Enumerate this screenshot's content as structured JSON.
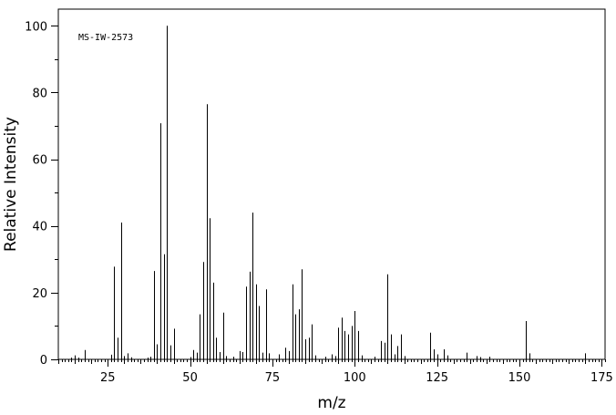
{
  "chart_data": {
    "type": "bar",
    "title": "",
    "annotation": "MS-IW-2573",
    "xlabel": "m/z",
    "ylabel": "Relative Intensity",
    "xlim": [
      10,
      176
    ],
    "ylim": [
      0,
      105
    ],
    "xticks": [
      25,
      50,
      75,
      100,
      125,
      150,
      175
    ],
    "yticks": [
      0,
      20,
      40,
      60,
      80,
      100
    ],
    "grid": false,
    "peaks": [
      {
        "x": 14,
        "y": 0.5
      },
      {
        "x": 15,
        "y": 1.2
      },
      {
        "x": 16,
        "y": 0.5
      },
      {
        "x": 18,
        "y": 2.8
      },
      {
        "x": 26,
        "y": 1.4
      },
      {
        "x": 27,
        "y": 27.8
      },
      {
        "x": 28,
        "y": 6.5
      },
      {
        "x": 29,
        "y": 41.0
      },
      {
        "x": 30,
        "y": 1.0
      },
      {
        "x": 31,
        "y": 1.8
      },
      {
        "x": 32,
        "y": 0.6
      },
      {
        "x": 37,
        "y": 0.5
      },
      {
        "x": 38,
        "y": 0.8
      },
      {
        "x": 39,
        "y": 26.5
      },
      {
        "x": 40,
        "y": 4.5
      },
      {
        "x": 41,
        "y": 70.8
      },
      {
        "x": 42,
        "y": 31.5
      },
      {
        "x": 43,
        "y": 100.0
      },
      {
        "x": 44,
        "y": 4.2
      },
      {
        "x": 45,
        "y": 9.2
      },
      {
        "x": 50,
        "y": 0.7
      },
      {
        "x": 51,
        "y": 2.8
      },
      {
        "x": 52,
        "y": 2.0
      },
      {
        "x": 53,
        "y": 13.5
      },
      {
        "x": 54,
        "y": 29.2
      },
      {
        "x": 55,
        "y": 76.5
      },
      {
        "x": 56,
        "y": 42.3
      },
      {
        "x": 57,
        "y": 23.0
      },
      {
        "x": 58,
        "y": 6.5
      },
      {
        "x": 59,
        "y": 2.2
      },
      {
        "x": 60,
        "y": 14.0
      },
      {
        "x": 61,
        "y": 1.0
      },
      {
        "x": 63,
        "y": 0.8
      },
      {
        "x": 65,
        "y": 2.5
      },
      {
        "x": 66,
        "y": 2.2
      },
      {
        "x": 67,
        "y": 21.8
      },
      {
        "x": 68,
        "y": 26.3
      },
      {
        "x": 69,
        "y": 44.0
      },
      {
        "x": 70,
        "y": 22.5
      },
      {
        "x": 71,
        "y": 16.0
      },
      {
        "x": 72,
        "y": 2.0
      },
      {
        "x": 73,
        "y": 21.0
      },
      {
        "x": 74,
        "y": 1.8
      },
      {
        "x": 77,
        "y": 1.5
      },
      {
        "x": 79,
        "y": 3.5
      },
      {
        "x": 80,
        "y": 2.5
      },
      {
        "x": 81,
        "y": 22.5
      },
      {
        "x": 82,
        "y": 13.5
      },
      {
        "x": 83,
        "y": 15.0
      },
      {
        "x": 84,
        "y": 27.0
      },
      {
        "x": 85,
        "y": 6.0
      },
      {
        "x": 86,
        "y": 6.5
      },
      {
        "x": 87,
        "y": 10.5
      },
      {
        "x": 88,
        "y": 1.2
      },
      {
        "x": 91,
        "y": 0.8
      },
      {
        "x": 93,
        "y": 1.5
      },
      {
        "x": 94,
        "y": 1.0
      },
      {
        "x": 95,
        "y": 9.5
      },
      {
        "x": 96,
        "y": 12.5
      },
      {
        "x": 97,
        "y": 8.5
      },
      {
        "x": 98,
        "y": 7.5
      },
      {
        "x": 99,
        "y": 10.0
      },
      {
        "x": 100,
        "y": 14.5
      },
      {
        "x": 101,
        "y": 8.5
      },
      {
        "x": 102,
        "y": 1.2
      },
      {
        "x": 106,
        "y": 0.8
      },
      {
        "x": 108,
        "y": 5.5
      },
      {
        "x": 109,
        "y": 5.0
      },
      {
        "x": 110,
        "y": 25.5
      },
      {
        "x": 111,
        "y": 7.5
      },
      {
        "x": 112,
        "y": 1.5
      },
      {
        "x": 113,
        "y": 4.0
      },
      {
        "x": 114,
        "y": 7.5
      },
      {
        "x": 115,
        "y": 1.0
      },
      {
        "x": 123,
        "y": 8.0
      },
      {
        "x": 124,
        "y": 3.0
      },
      {
        "x": 125,
        "y": 1.5
      },
      {
        "x": 127,
        "y": 3.0
      },
      {
        "x": 128,
        "y": 1.2
      },
      {
        "x": 134,
        "y": 2.0
      },
      {
        "x": 137,
        "y": 1.0
      },
      {
        "x": 138,
        "y": 0.7
      },
      {
        "x": 141,
        "y": 0.8
      },
      {
        "x": 152,
        "y": 11.5
      },
      {
        "x": 153,
        "y": 1.8
      },
      {
        "x": 170,
        "y": 1.8
      }
    ]
  }
}
